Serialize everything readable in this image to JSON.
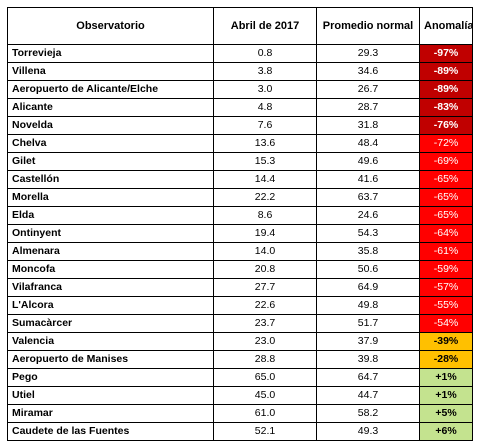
{
  "table": {
    "headers": [
      "Observatorio",
      "Abril de 2017",
      "Promedio normal",
      "Anomalía"
    ],
    "rows": [
      {
        "name": "Torrevieja",
        "april": "0.8",
        "normal": "29.3",
        "anomaly": "-97%",
        "bg": "#c00000",
        "fg": "#ffffff",
        "bold": true
      },
      {
        "name": "Villena",
        "april": "3.8",
        "normal": "34.6",
        "anomaly": "-89%",
        "bg": "#c00000",
        "fg": "#ffffff",
        "bold": true
      },
      {
        "name": "Aeropuerto de Alicante/Elche",
        "april": "3.0",
        "normal": "26.7",
        "anomaly": "-89%",
        "bg": "#c00000",
        "fg": "#ffffff",
        "bold": true
      },
      {
        "name": "Alicante",
        "april": "4.8",
        "normal": "28.7",
        "anomaly": "-83%",
        "bg": "#c00000",
        "fg": "#ffffff",
        "bold": true
      },
      {
        "name": "Novelda",
        "april": "7.6",
        "normal": "31.8",
        "anomaly": "-76%",
        "bg": "#c00000",
        "fg": "#ffffff",
        "bold": true
      },
      {
        "name": "Chelva",
        "april": "13.6",
        "normal": "48.4",
        "anomaly": "-72%",
        "bg": "#ff0000",
        "fg": "#ffffff",
        "bold": false
      },
      {
        "name": "Gilet",
        "april": "15.3",
        "normal": "49.6",
        "anomaly": "-69%",
        "bg": "#ff0000",
        "fg": "#ffffff",
        "bold": false
      },
      {
        "name": "Castellón",
        "april": "14.4",
        "normal": "41.6",
        "anomaly": "-65%",
        "bg": "#ff0000",
        "fg": "#ffffff",
        "bold": false
      },
      {
        "name": "Morella",
        "april": "22.2",
        "normal": "63.7",
        "anomaly": "-65%",
        "bg": "#ff0000",
        "fg": "#ffffff",
        "bold": false
      },
      {
        "name": "Elda",
        "april": "8.6",
        "normal": "24.6",
        "anomaly": "-65%",
        "bg": "#ff0000",
        "fg": "#ffffff",
        "bold": false
      },
      {
        "name": "Ontinyent",
        "april": "19.4",
        "normal": "54.3",
        "anomaly": "-64%",
        "bg": "#ff0000",
        "fg": "#ffffff",
        "bold": false
      },
      {
        "name": "Almenara",
        "april": "14.0",
        "normal": "35.8",
        "anomaly": "-61%",
        "bg": "#ff0000",
        "fg": "#ffffff",
        "bold": false
      },
      {
        "name": "Moncofa",
        "april": "20.8",
        "normal": "50.6",
        "anomaly": "-59%",
        "bg": "#ff0000",
        "fg": "#ffffff",
        "bold": false
      },
      {
        "name": "Vilafranca",
        "april": "27.7",
        "normal": "64.9",
        "anomaly": "-57%",
        "bg": "#ff0000",
        "fg": "#ffffff",
        "bold": false
      },
      {
        "name": "L'Alcora",
        "april": "22.6",
        "normal": "49.8",
        "anomaly": "-55%",
        "bg": "#ff0000",
        "fg": "#ffffff",
        "bold": false
      },
      {
        "name": "Sumacàrcer",
        "april": "23.7",
        "normal": "51.7",
        "anomaly": "-54%",
        "bg": "#ff0000",
        "fg": "#ffffff",
        "bold": false
      },
      {
        "name": "Valencia",
        "april": "23.0",
        "normal": "37.9",
        "anomaly": "-39%",
        "bg": "#ffc000",
        "fg": "#000000",
        "bold": true
      },
      {
        "name": "Aeropuerto de Manises",
        "april": "28.8",
        "normal": "39.8",
        "anomaly": "-28%",
        "bg": "#ffc000",
        "fg": "#000000",
        "bold": true
      },
      {
        "name": "Pego",
        "april": "65.0",
        "normal": "64.7",
        "anomaly": "+1%",
        "bg": "#c4e38f",
        "fg": "#000000",
        "bold": true
      },
      {
        "name": "Utiel",
        "april": "45.0",
        "normal": "44.7",
        "anomaly": "+1%",
        "bg": "#c4e38f",
        "fg": "#000000",
        "bold": true
      },
      {
        "name": "Miramar",
        "april": "61.0",
        "normal": "58.2",
        "anomaly": "+5%",
        "bg": "#c4e38f",
        "fg": "#000000",
        "bold": true
      },
      {
        "name": "Caudete de las Fuentes",
        "april": "52.1",
        "normal": "49.3",
        "anomaly": "+6%",
        "bg": "#c4e38f",
        "fg": "#000000",
        "bold": true
      }
    ]
  }
}
